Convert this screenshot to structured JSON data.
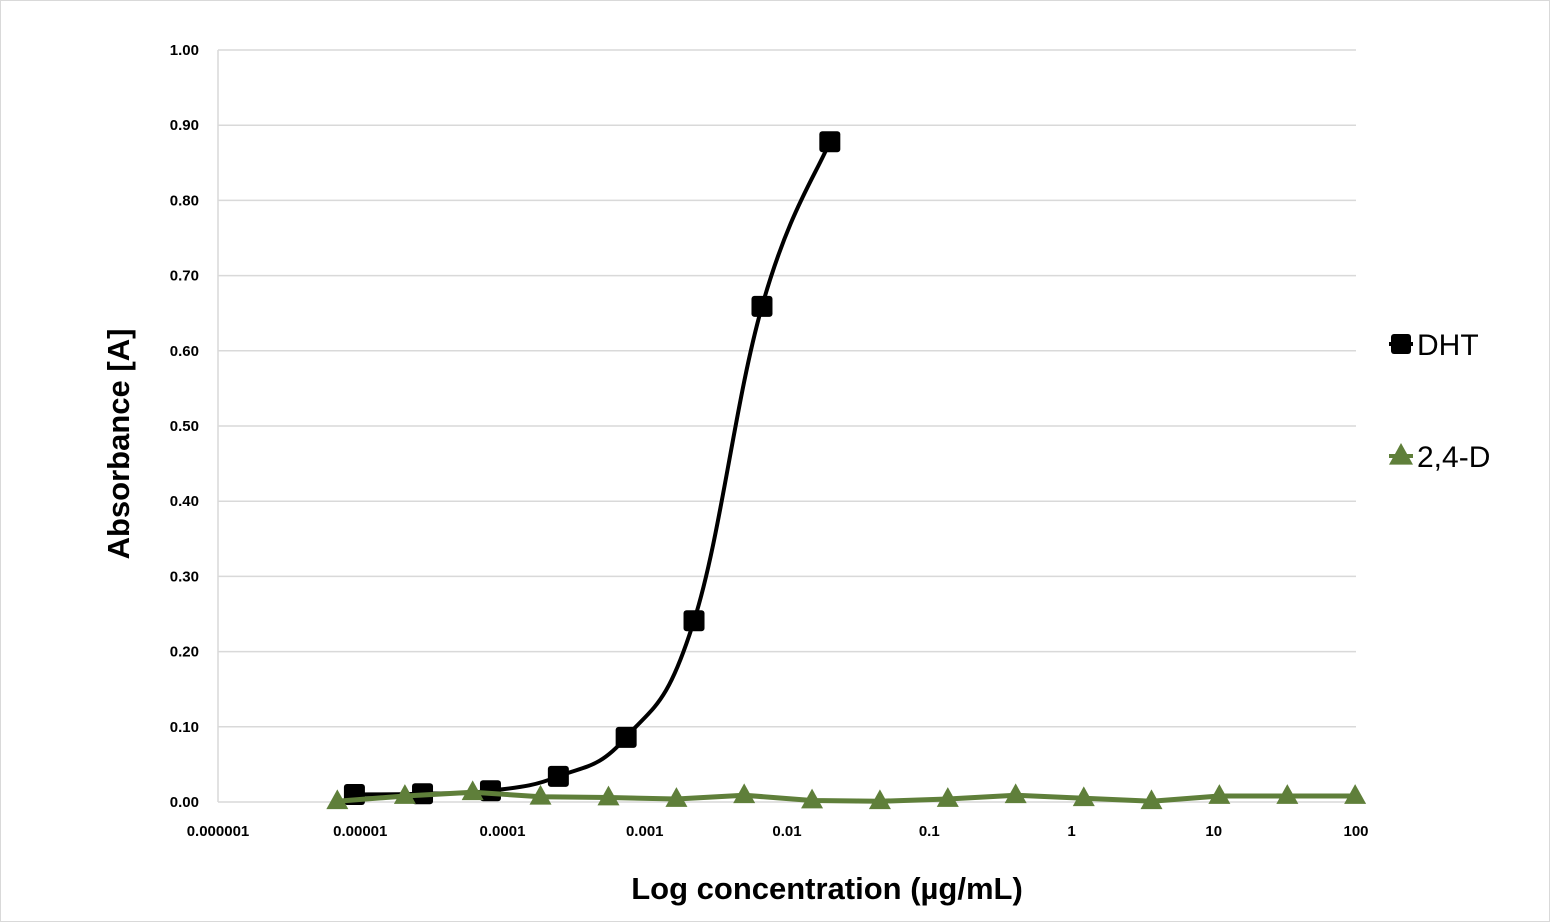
{
  "chart_data": {
    "type": "line",
    "xscale": "log",
    "xlabel": "Log concentration (µg/mL)",
    "ylabel": "Absorbance [A]",
    "xlim": [
      1e-06,
      100
    ],
    "ylim": [
      0,
      1.0
    ],
    "x_tick_labels": [
      "0.000001",
      "0.00001",
      "0.0001",
      "0.001",
      "0.01",
      "0.1",
      "1",
      "10",
      "100"
    ],
    "y_tick_labels": [
      "0.00",
      "0.10",
      "0.20",
      "0.30",
      "0.40",
      "0.50",
      "0.60",
      "0.70",
      "0.80",
      "0.90",
      "1.00"
    ],
    "grid": "horizontal",
    "legend_position": "right",
    "series": [
      {
        "name": "DHT",
        "color": "#000000",
        "marker": "square",
        "smooth": true,
        "x": [
          9.1e-06,
          2.74e-05,
          8.23e-05,
          0.000247,
          0.00074,
          0.00222,
          0.00667,
          0.02
        ],
        "y": [
          0.01,
          0.011,
          0.015,
          0.034,
          0.086,
          0.241,
          0.659,
          0.878
        ]
      },
      {
        "name": "2,4-D",
        "color": "#5f7f3a",
        "marker": "triangle",
        "smooth": false,
        "x": [
          6.9e-06,
          2.06e-05,
          6.17e-05,
          0.000185,
          0.000556,
          0.00167,
          0.005,
          0.015,
          0.045,
          0.135,
          0.405,
          1.22,
          3.65,
          10.95,
          32.9,
          98.6
        ],
        "y": [
          0.001,
          0.008,
          0.013,
          0.007,
          0.006,
          0.004,
          0.009,
          0.002,
          0.001,
          0.004,
          0.009,
          0.005,
          0.001,
          0.008,
          0.008,
          0.008
        ]
      }
    ]
  }
}
